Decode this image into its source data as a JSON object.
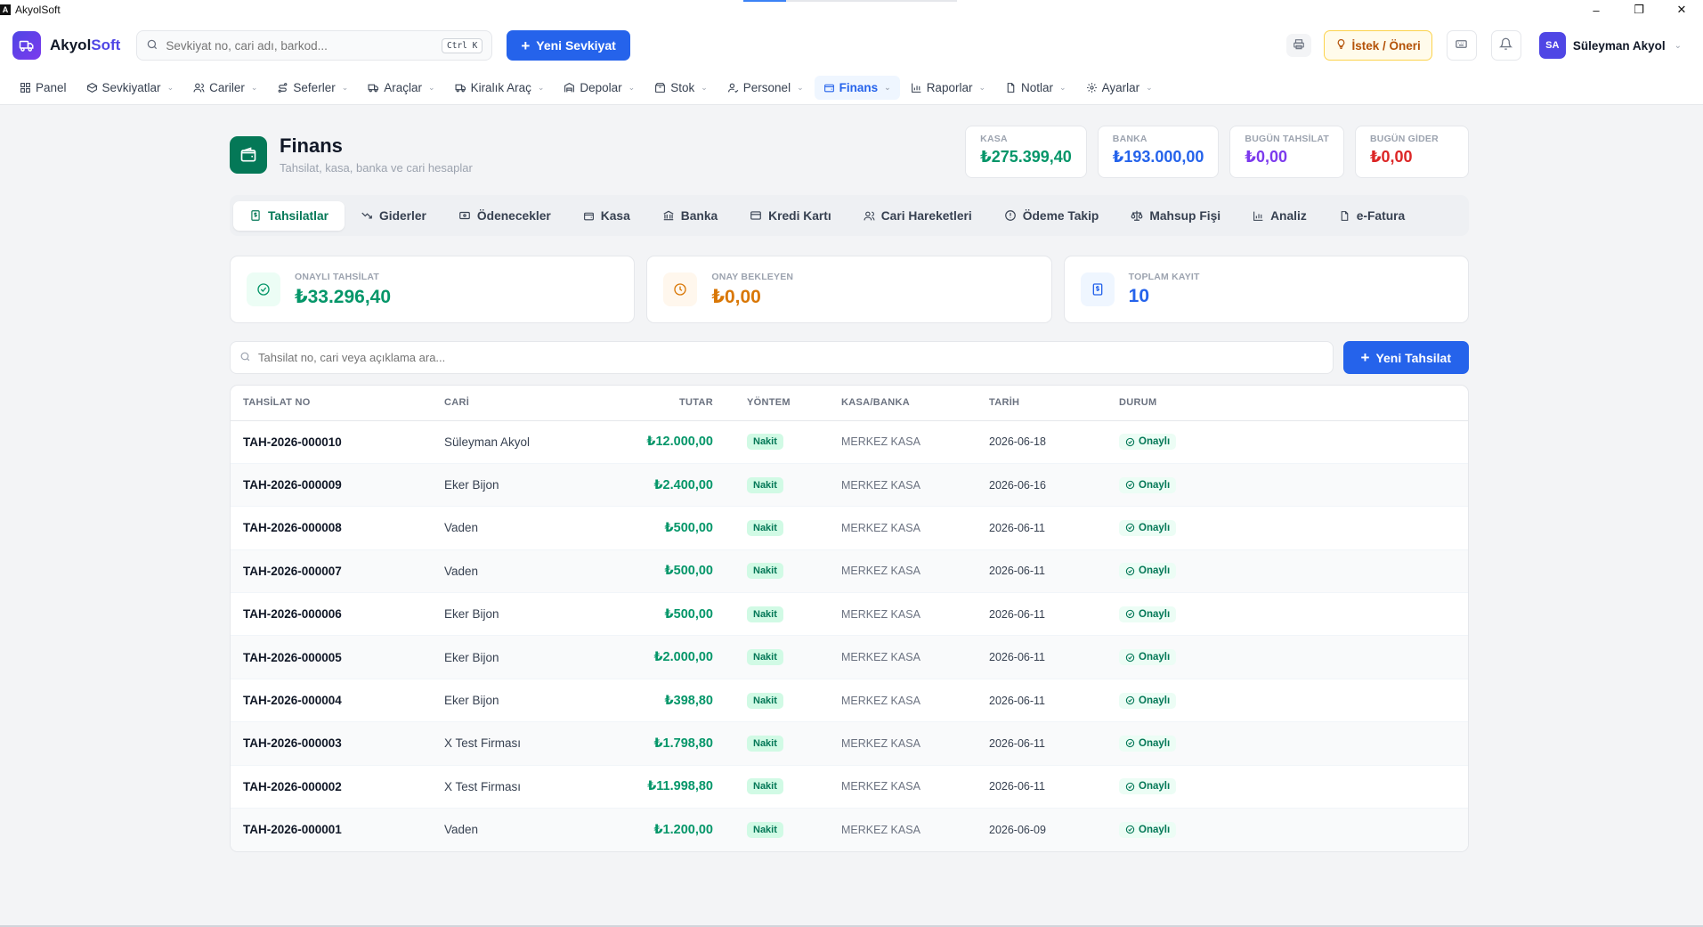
{
  "window": {
    "title": "AkyolSoft",
    "controls": [
      "–",
      "❐",
      "✕"
    ],
    "progress": 0.2
  },
  "header": {
    "brand_prefix": "Akyol",
    "brand_suffix": "Soft",
    "search_placeholder": "Sevkiyat no, cari adı, barkod...",
    "search_shortcut": "Ctrl K",
    "new_shipment": "Yeni Sevkiyat",
    "suggest": "İstek / Öneri",
    "user_initials": "SA",
    "user_name": "Süleyman Akyol"
  },
  "nav": [
    {
      "label": "Panel",
      "icon": "grid-icon",
      "dropdown": false
    },
    {
      "label": "Sevkiyatlar",
      "icon": "box-icon",
      "dropdown": true
    },
    {
      "label": "Cariler",
      "icon": "users-icon",
      "dropdown": true
    },
    {
      "label": "Seferler",
      "icon": "route-icon",
      "dropdown": true
    },
    {
      "label": "Araçlar",
      "icon": "truck-icon",
      "dropdown": true
    },
    {
      "label": "Kiralık Araç",
      "icon": "truck-icon",
      "dropdown": true
    },
    {
      "label": "Depolar",
      "icon": "warehouse-icon",
      "dropdown": true
    },
    {
      "label": "Stok",
      "icon": "package-icon",
      "dropdown": true
    },
    {
      "label": "Personel",
      "icon": "user-icon",
      "dropdown": true
    },
    {
      "label": "Finans",
      "icon": "wallet-icon",
      "dropdown": true,
      "active": true
    },
    {
      "label": "Raporlar",
      "icon": "chart-icon",
      "dropdown": true
    },
    {
      "label": "Notlar",
      "icon": "file-icon",
      "dropdown": true
    },
    {
      "label": "Ayarlar",
      "icon": "gear-icon",
      "dropdown": true
    }
  ],
  "page": {
    "title": "Finans",
    "subtitle": "Tahsilat, kasa, banka ve cari hesaplar",
    "stats": [
      {
        "label": "KASA",
        "value": "₺275.399,40",
        "color": "#059669"
      },
      {
        "label": "BANKA",
        "value": "₺193.000,00",
        "color": "#2563eb"
      },
      {
        "label": "BUGÜN TAHSİLAT",
        "value": "₺0,00",
        "color": "#7c3aed"
      },
      {
        "label": "BUGÜN GİDER",
        "value": "₺0,00",
        "color": "#dc2626"
      }
    ]
  },
  "tabs": [
    {
      "label": "Tahsilatlar",
      "icon": "dollar-file-icon",
      "active": true
    },
    {
      "label": "Giderler",
      "icon": "trend-down-icon"
    },
    {
      "label": "Ödenecekler",
      "icon": "card-icon"
    },
    {
      "label": "Kasa",
      "icon": "wallet-icon"
    },
    {
      "label": "Banka",
      "icon": "bank-icon"
    },
    {
      "label": "Kredi Kartı",
      "icon": "credit-card-icon"
    },
    {
      "label": "Cari Hareketleri",
      "icon": "users-icon"
    },
    {
      "label": "Ödeme Takip",
      "icon": "alert-circle-icon"
    },
    {
      "label": "Mahsup Fişi",
      "icon": "scale-icon"
    },
    {
      "label": "Analiz",
      "icon": "chart-icon"
    },
    {
      "label": "e-Fatura",
      "icon": "file-icon"
    }
  ],
  "cards": [
    {
      "label": "ONAYLI TAHSİLAT",
      "value": "₺33.296,40",
      "color": "#059669",
      "bg": "#ecfdf5"
    },
    {
      "label": "ONAY BEKLEYEN",
      "value": "₺0,00",
      "color": "#d97706",
      "bg": "#fff7ed"
    },
    {
      "label": "TOPLAM KAYIT",
      "value": "10",
      "color": "#2563eb",
      "bg": "#eff6ff"
    }
  ],
  "table_search_placeholder": "Tahsilat no, cari veya açıklama ara...",
  "new_collection": "Yeni Tahsilat",
  "table": {
    "columns": [
      "TAHSİLAT NO",
      "CARİ",
      "TUTAR",
      "YÖNTEM",
      "KASA/BANKA",
      "TARİH",
      "DURUM"
    ],
    "rows": [
      {
        "no": "TAH-2026-000010",
        "cari": "Süleyman Akyol",
        "tutar": "₺12.000,00",
        "yontem": "Nakit",
        "kasa": "MERKEZ KASA",
        "tarih": "2026-06-18",
        "durum": "Onaylı"
      },
      {
        "no": "TAH-2026-000009",
        "cari": "Eker Bijon",
        "tutar": "₺2.400,00",
        "yontem": "Nakit",
        "kasa": "MERKEZ KASA",
        "tarih": "2026-06-16",
        "durum": "Onaylı"
      },
      {
        "no": "TAH-2026-000008",
        "cari": "Vaden",
        "tutar": "₺500,00",
        "yontem": "Nakit",
        "kasa": "MERKEZ KASA",
        "tarih": "2026-06-11",
        "durum": "Onaylı"
      },
      {
        "no": "TAH-2026-000007",
        "cari": "Vaden",
        "tutar": "₺500,00",
        "yontem": "Nakit",
        "kasa": "MERKEZ KASA",
        "tarih": "2026-06-11",
        "durum": "Onaylı"
      },
      {
        "no": "TAH-2026-000006",
        "cari": "Eker Bijon",
        "tutar": "₺500,00",
        "yontem": "Nakit",
        "kasa": "MERKEZ KASA",
        "tarih": "2026-06-11",
        "durum": "Onaylı"
      },
      {
        "no": "TAH-2026-000005",
        "cari": "Eker Bijon",
        "tutar": "₺2.000,00",
        "yontem": "Nakit",
        "kasa": "MERKEZ KASA",
        "tarih": "2026-06-11",
        "durum": "Onaylı"
      },
      {
        "no": "TAH-2026-000004",
        "cari": "Eker Bijon",
        "tutar": "₺398,80",
        "yontem": "Nakit",
        "kasa": "MERKEZ KASA",
        "tarih": "2026-06-11",
        "durum": "Onaylı"
      },
      {
        "no": "TAH-2026-000003",
        "cari": "X Test Firması",
        "tutar": "₺1.798,80",
        "yontem": "Nakit",
        "kasa": "MERKEZ KASA",
        "tarih": "2026-06-11",
        "durum": "Onaylı"
      },
      {
        "no": "TAH-2026-000002",
        "cari": "X Test Firması",
        "tutar": "₺11.998,80",
        "yontem": "Nakit",
        "kasa": "MERKEZ KASA",
        "tarih": "2026-06-11",
        "durum": "Onaylı"
      },
      {
        "no": "TAH-2026-000001",
        "cari": "Vaden",
        "tutar": "₺1.200,00",
        "yontem": "Nakit",
        "kasa": "MERKEZ KASA",
        "tarih": "2026-06-09",
        "durum": "Onaylı"
      }
    ]
  }
}
